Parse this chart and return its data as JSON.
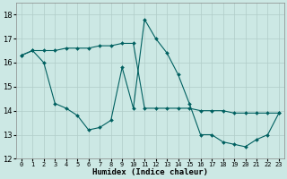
{
  "xlabel": "Humidex (Indice chaleur)",
  "background_color": "#cce8e4",
  "grid_color": "#b0ccc8",
  "line_color": "#006060",
  "xlim": [
    -0.5,
    23.5
  ],
  "ylim": [
    12,
    18.5
  ],
  "yticks": [
    12,
    13,
    14,
    15,
    16,
    17,
    18
  ],
  "xtick_labels": [
    "0",
    "1",
    "2",
    "3",
    "4",
    "5",
    "6",
    "7",
    "8",
    "9",
    "10",
    "11",
    "12",
    "13",
    "14",
    "15",
    "16",
    "17",
    "18",
    "19",
    "20",
    "21",
    "22",
    "23"
  ],
  "line1_x": [
    0,
    1,
    2,
    3,
    4,
    5,
    6,
    7,
    8,
    9,
    10,
    11,
    12,
    13,
    14,
    15,
    16,
    17,
    18,
    19,
    20,
    21,
    22,
    23
  ],
  "line1_y": [
    16.3,
    16.5,
    16.0,
    14.3,
    14.1,
    13.8,
    13.2,
    13.3,
    13.6,
    15.8,
    14.1,
    17.8,
    17.0,
    16.4,
    15.5,
    14.3,
    13.0,
    13.0,
    12.7,
    12.6,
    12.5,
    12.8,
    13.0,
    13.9
  ],
  "line2_x": [
    0,
    1,
    2,
    3,
    4,
    5,
    6,
    7,
    8,
    9,
    10,
    11,
    12,
    13,
    14,
    15,
    16,
    17,
    18,
    19,
    20,
    21,
    22,
    23
  ],
  "line2_y": [
    16.3,
    16.5,
    16.5,
    16.5,
    16.6,
    16.6,
    16.6,
    16.7,
    16.7,
    16.8,
    16.8,
    14.1,
    14.1,
    14.1,
    14.1,
    14.1,
    14.0,
    14.0,
    14.0,
    13.9,
    13.9,
    13.9,
    13.9,
    13.9
  ]
}
